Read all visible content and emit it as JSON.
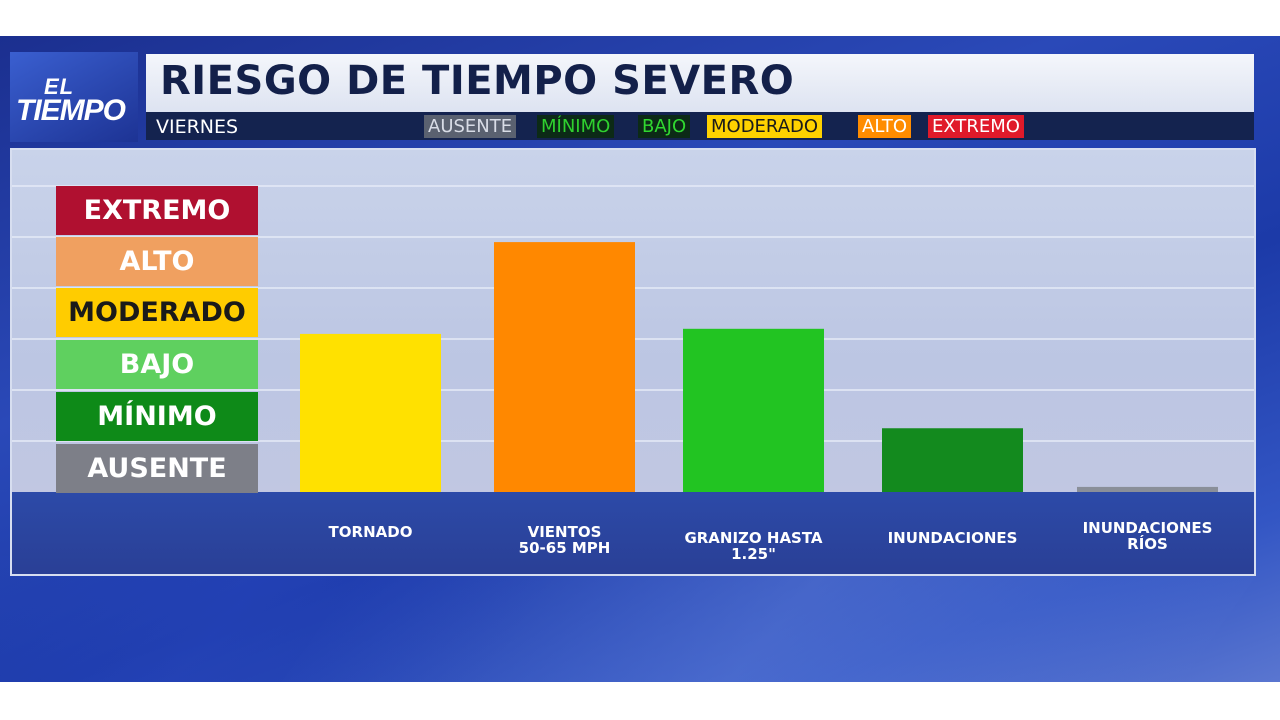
{
  "brand": {
    "line1": "EL",
    "line2": "TIEMPO"
  },
  "header": {
    "title": "RIESGO DE TIEMPO SEVERO",
    "day": "VIERNES"
  },
  "legend": [
    {
      "label": "AUSENTE",
      "color": "#d8dce6",
      "bg": "#5a6170"
    },
    {
      "label": "MÍNIMO",
      "color": "#2fd12f",
      "bg": "#0c2a16"
    },
    {
      "label": "BAJO",
      "color": "#30d830",
      "bg": "#0c2a16"
    },
    {
      "label": "MODERADO",
      "color": "#1a1a1a",
      "bg": "#ffd200"
    },
    {
      "label": "ALTO",
      "color": "#ffffff",
      "bg": "#ff8c00"
    },
    {
      "label": "EXTREMO",
      "color": "#ffffff",
      "bg": "#e01a2a"
    }
  ],
  "levels": [
    {
      "label": "EXTREMO",
      "bg": "#b01030",
      "color": "#ffffff"
    },
    {
      "label": "ALTO",
      "bg": "#f0a060",
      "color": "#ffffff"
    },
    {
      "label": "MODERADO",
      "bg": "#ffcc00",
      "color": "#1a1a1a"
    },
    {
      "label": "BAJO",
      "bg": "#5fd05f",
      "color": "#ffffff"
    },
    {
      "label": "MÍNIMO",
      "bg": "#0e8a18",
      "color": "#ffffff"
    },
    {
      "label": "AUSENTE",
      "bg": "#7d7f88",
      "color": "#ffffff"
    }
  ],
  "chart_data": {
    "type": "bar",
    "categories": [
      "TORNADO",
      "VIENTOS\n50-65 MPH",
      "GRANIZO HASTA\n1.25\"",
      "INUNDACIONES",
      "INUNDACIONES\nRÍOS"
    ],
    "values": [
      3.1,
      4.9,
      3.2,
      1.25,
      0.1
    ],
    "bar_colors": [
      "#ffe100",
      "#ff8800",
      "#22c422",
      "#138a1e",
      "#8a8f99"
    ],
    "ylim": [
      0,
      6
    ],
    "y_tick_labels": [
      "AUSENTE",
      "MÍNIMO",
      "BAJO",
      "MODERADO",
      "ALTO",
      "EXTREMO"
    ],
    "title": "RIESGO DE TIEMPO SEVERO",
    "xlabel": "",
    "ylabel": "",
    "grid": true
  }
}
